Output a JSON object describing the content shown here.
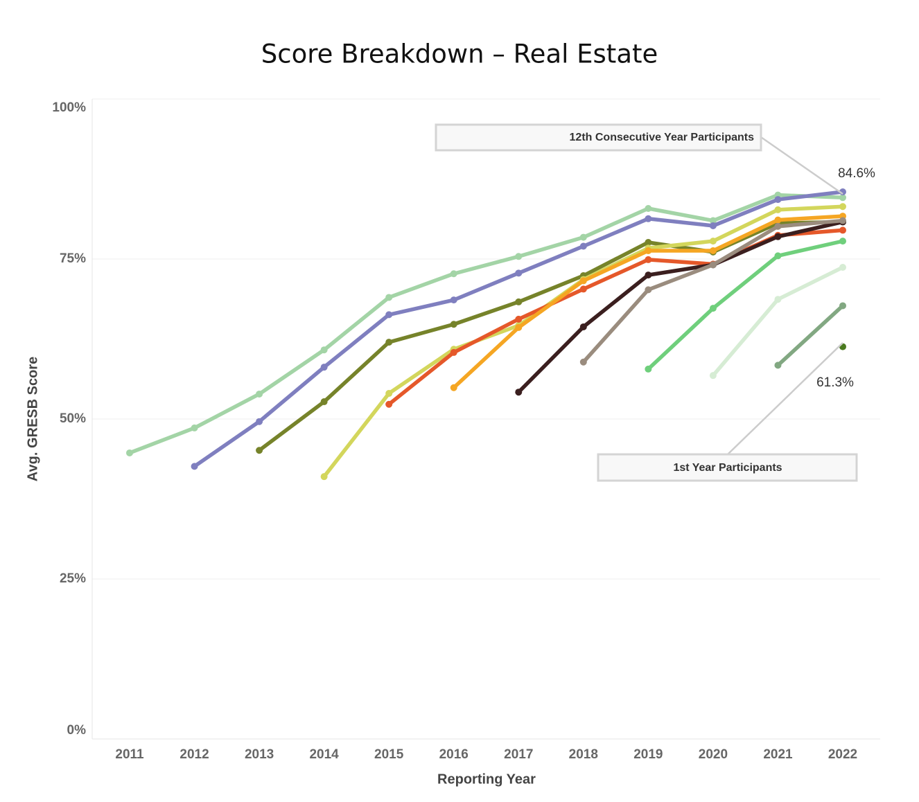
{
  "chart_data": {
    "type": "line",
    "title": "Score Breakdown – Real Estate",
    "x_label": "Reporting Year",
    "y_label": "Avg. GRESB Score",
    "categories": [
      "2011",
      "2012",
      "2013",
      "2014",
      "2015",
      "2016",
      "2017",
      "2018",
      "2019",
      "2020",
      "2021",
      "2022"
    ],
    "ylim": [
      0,
      100
    ],
    "yticks": [
      {
        "value": 0,
        "label": "0%"
      },
      {
        "value": 25,
        "label": "25%"
      },
      {
        "value": 50,
        "label": "50%"
      },
      {
        "value": 75,
        "label": "75%"
      },
      {
        "value": 100,
        "label": "100%"
      }
    ],
    "grid": true,
    "series": [
      {
        "color": "#a3d4a6",
        "values": [
          44.7,
          48.6,
          53.9,
          60.8,
          69.0,
          72.7,
          75.4,
          78.4,
          82.9,
          81.0,
          85.0,
          84.6
        ]
      },
      {
        "color": "#7f7fbf",
        "values": [
          null,
          42.6,
          49.6,
          58.1,
          66.3,
          68.6,
          72.8,
          77.0,
          81.3,
          80.2,
          84.3,
          85.5
        ]
      },
      {
        "color": "#76832a",
        "values": [
          null,
          null,
          45.1,
          52.7,
          62.0,
          64.8,
          68.3,
          72.4,
          77.6,
          76.1,
          80.6,
          80.8
        ]
      },
      {
        "color": "#d3d65c",
        "values": [
          null,
          null,
          null,
          41.0,
          54.0,
          60.9,
          64.6,
          71.8,
          76.7,
          77.8,
          82.7,
          83.2
        ]
      },
      {
        "color": "#e5582a",
        "values": [
          null,
          null,
          null,
          null,
          52.3,
          60.4,
          65.6,
          70.3,
          74.9,
          74.2,
          78.7,
          79.5
        ]
      },
      {
        "color": "#f5a623",
        "values": [
          null,
          null,
          null,
          null,
          null,
          54.9,
          64.3,
          71.6,
          76.3,
          76.3,
          81.1,
          81.7
        ]
      },
      {
        "color": "#3b1f1f",
        "values": [
          null,
          null,
          null,
          null,
          null,
          null,
          54.2,
          64.4,
          72.5,
          74.1,
          78.5,
          80.8
        ]
      },
      {
        "color": "#9a8c7e",
        "values": [
          null,
          null,
          null,
          null,
          null,
          null,
          null,
          58.9,
          70.2,
          74.1,
          80.1,
          81.0
        ]
      },
      {
        "color": "#6fcf7c",
        "values": [
          null,
          null,
          null,
          null,
          null,
          null,
          null,
          null,
          57.8,
          67.3,
          75.5,
          77.8
        ]
      },
      {
        "color": "#d6ecd4",
        "values": [
          null,
          null,
          null,
          null,
          null,
          null,
          null,
          null,
          null,
          56.8,
          68.7,
          73.7
        ]
      },
      {
        "color": "#82a882",
        "values": [
          null,
          null,
          null,
          null,
          null,
          null,
          null,
          null,
          null,
          null,
          58.4,
          67.7
        ]
      },
      {
        "color": "#4a7a1f",
        "values": [
          null,
          null,
          null,
          null,
          null,
          null,
          null,
          null,
          null,
          null,
          null,
          61.3
        ]
      }
    ],
    "annotations": [
      "12th Consecutive Year Participants",
      "1st Year Participants",
      "84.6%",
      "61.3%"
    ]
  }
}
